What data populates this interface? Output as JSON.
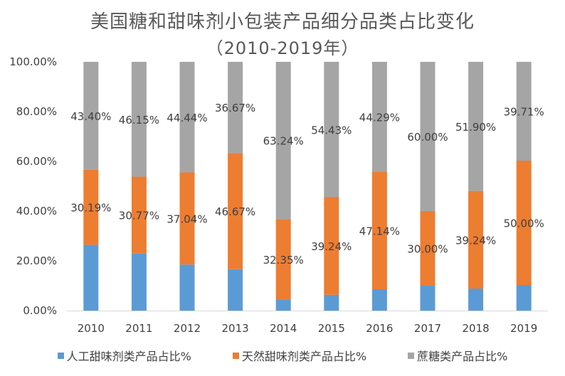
{
  "chart_data": {
    "type": "bar",
    "stacked": true,
    "title": "美国糖和甜味剂小包装产品细分品类占比变化",
    "subtitle": "（2010-2019年）",
    "categories": [
      "2010",
      "2011",
      "2012",
      "2013",
      "2014",
      "2015",
      "2016",
      "2017",
      "2018",
      "2019"
    ],
    "ylim": [
      0,
      100
    ],
    "yticks": [
      "0.00%",
      "20.00%",
      "40.00%",
      "60.00%",
      "80.00%",
      "100.00%"
    ],
    "grid": false,
    "legend_position": "bottom",
    "series": [
      {
        "name": "人工甜味剂类产品占比%",
        "color": "#5B9BD5",
        "values": [
          26.41,
          23.08,
          18.52,
          16.66,
          4.41,
          6.33,
          8.57,
          10.0,
          8.86,
          10.29
        ],
        "labels": [
          "",
          "",
          "",
          "",
          "",
          "",
          "",
          "",
          "",
          ""
        ]
      },
      {
        "name": "天然甜味剂类产品占比%",
        "color": "#ED7D31",
        "values": [
          30.19,
          30.77,
          37.04,
          46.67,
          32.35,
          39.24,
          47.14,
          30.0,
          39.24,
          50.0
        ],
        "labels": [
          "30.19%",
          "30.77%",
          "37.04%",
          "46.67%",
          "32.35%",
          "39.24%",
          "47.14%",
          "30.00%",
          "39.24%",
          "50.00%"
        ]
      },
      {
        "name": "蔗糖类产品占比%",
        "color": "#A5A5A5",
        "values": [
          43.4,
          46.15,
          44.44,
          36.67,
          63.24,
          54.43,
          44.29,
          60.0,
          51.9,
          39.71
        ],
        "labels": [
          "43.40%",
          "46.15%",
          "44.44%",
          "36.67%",
          "63.24%",
          "54.43%",
          "44.29%",
          "60.00%",
          "51.90%",
          "39.71%"
        ]
      }
    ]
  }
}
